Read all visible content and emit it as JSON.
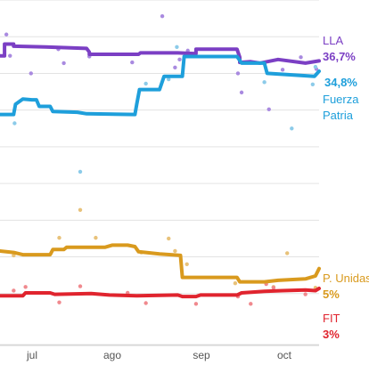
{
  "chart_data": {
    "type": "line",
    "title": "",
    "xlabel": "",
    "ylabel": "",
    "x_ticks": [
      "jul",
      "ago",
      "sep",
      "oct"
    ],
    "y_range": [
      0,
      45
    ],
    "grid": "horizontal",
    "series": [
      {
        "name": "LLA",
        "label_lines": [
          "LLA"
        ],
        "value_label": "36,7%",
        "color": "#7b3fc4",
        "dot_color": "#a98ae0",
        "points": [
          [
            0,
            37.4
          ],
          [
            0.5,
            37.4
          ],
          [
            0.5,
            39.0
          ],
          [
            1.5,
            39.0
          ],
          [
            1.5,
            38.7
          ],
          [
            5,
            38.6
          ],
          [
            9.5,
            38.4
          ],
          [
            9.8,
            37.9
          ],
          [
            9.8,
            37.6
          ],
          [
            15.2,
            37.6
          ],
          [
            15.4,
            37.8
          ],
          [
            19.5,
            37.8
          ],
          [
            21.5,
            37.7
          ],
          [
            21.5,
            38.3
          ],
          [
            26,
            38.3
          ],
          [
            26.3,
            37.2
          ],
          [
            26.3,
            36.5
          ],
          [
            27.5,
            36.6
          ],
          [
            28.5,
            36.4
          ],
          [
            30.5,
            36.9
          ],
          [
            33.5,
            36.4
          ],
          [
            35,
            36.7
          ]
        ],
        "polls": [
          [
            0.7,
            40.3
          ],
          [
            1.1,
            37.4
          ],
          [
            3.4,
            35.0
          ],
          [
            6.4,
            38.3
          ],
          [
            7.0,
            36.4
          ],
          [
            9.8,
            37.3
          ],
          [
            14.5,
            36.5
          ],
          [
            17.8,
            42.8
          ],
          [
            19.2,
            35.8
          ],
          [
            19.7,
            36.9
          ],
          [
            20.6,
            38.1
          ],
          [
            26.1,
            35.0
          ],
          [
            26.5,
            32.4
          ],
          [
            29.5,
            30.1
          ],
          [
            31.0,
            35.5
          ],
          [
            33.0,
            37.2
          ],
          [
            34.7,
            35.6
          ]
        ]
      },
      {
        "name": "Fuerza Patria",
        "label_lines": [
          "Fuerza",
          "Patria"
        ],
        "value_label": "34,8%",
        "color": "#1e9fdb",
        "dot_color": "#8ccbe9",
        "points": [
          [
            0,
            29.4
          ],
          [
            0.5,
            29.4
          ],
          [
            1.5,
            29.4
          ],
          [
            1.7,
            30.8
          ],
          [
            2.5,
            31.5
          ],
          [
            3.5,
            31.4
          ],
          [
            4.0,
            31.4
          ],
          [
            4.3,
            30.5
          ],
          [
            5.5,
            30.5
          ],
          [
            5.8,
            29.8
          ],
          [
            8.5,
            29.7
          ],
          [
            9.5,
            29.5
          ],
          [
            14.8,
            29.4
          ],
          [
            15.0,
            30.8
          ],
          [
            15.3,
            32.8
          ],
          [
            17.5,
            32.8
          ],
          [
            18.0,
            34.6
          ],
          [
            20.0,
            34.6
          ],
          [
            20.2,
            37.3
          ],
          [
            26.0,
            37.3
          ],
          [
            26.5,
            36.4
          ],
          [
            29.0,
            36.4
          ],
          [
            29.3,
            35.0
          ],
          [
            32.0,
            34.8
          ],
          [
            34.5,
            34.6
          ],
          [
            35,
            35.3
          ]
        ],
        "polls": [
          [
            1.6,
            28.2
          ],
          [
            8.8,
            21.6
          ],
          [
            16.0,
            33.6
          ],
          [
            18.5,
            34.2
          ],
          [
            19.4,
            38.6
          ],
          [
            26.3,
            37.0
          ],
          [
            29.0,
            33.8
          ],
          [
            32.0,
            27.5
          ],
          [
            34.3,
            33.5
          ],
          [
            34.6,
            35.9
          ]
        ]
      },
      {
        "name": "P. Unidas",
        "label_lines": [
          "P. Unidas"
        ],
        "value_label": "5%",
        "color": "#d99a1e",
        "dot_color": "#e8c27a",
        "points": [
          [
            0,
            10.8
          ],
          [
            1.5,
            10.6
          ],
          [
            2.5,
            10.3
          ],
          [
            5.5,
            10.3
          ],
          [
            5.8,
            11.0
          ],
          [
            7.0,
            11.0
          ],
          [
            7.3,
            11.3
          ],
          [
            11.5,
            11.3
          ],
          [
            12.3,
            11.6
          ],
          [
            14.0,
            11.6
          ],
          [
            14.8,
            11.4
          ],
          [
            15.2,
            10.7
          ],
          [
            17.5,
            10.4
          ],
          [
            19.8,
            10.2
          ],
          [
            20.0,
            7.2
          ],
          [
            26.0,
            7.2
          ],
          [
            26.3,
            6.6
          ],
          [
            29.0,
            6.6
          ],
          [
            30.5,
            6.8
          ],
          [
            33.5,
            7.0
          ],
          [
            34.6,
            7.4
          ],
          [
            35,
            8.4
          ]
        ],
        "polls": [
          [
            1.5,
            10.2
          ],
          [
            6.5,
            12.6
          ],
          [
            8.8,
            16.4
          ],
          [
            10.5,
            12.6
          ],
          [
            15.5,
            10.6
          ],
          [
            18.5,
            12.5
          ],
          [
            19.2,
            10.8
          ],
          [
            20.5,
            9.0
          ],
          [
            25.8,
            6.4
          ],
          [
            30.0,
            5.9
          ],
          [
            31.5,
            10.5
          ],
          [
            34.6,
            5.8
          ]
        ]
      },
      {
        "name": "FIT",
        "label_lines": [
          "FIT"
        ],
        "value_label": "3%",
        "color": "#e0242e",
        "dot_color": "#f0898e",
        "points": [
          [
            0,
            4.7
          ],
          [
            2.5,
            4.7
          ],
          [
            2.8,
            5.1
          ],
          [
            5.5,
            5.1
          ],
          [
            6.0,
            4.9
          ],
          [
            10.0,
            5.0
          ],
          [
            12.0,
            4.8
          ],
          [
            15.0,
            4.7
          ],
          [
            19.5,
            4.8
          ],
          [
            20.0,
            4.6
          ],
          [
            21.5,
            4.6
          ],
          [
            22.0,
            4.8
          ],
          [
            26.0,
            4.8
          ],
          [
            26.5,
            5.1
          ],
          [
            29.0,
            5.3
          ],
          [
            31.0,
            5.4
          ],
          [
            33.5,
            5.5
          ],
          [
            34.6,
            5.4
          ],
          [
            35,
            5.7
          ]
        ],
        "polls": [
          [
            1.5,
            5.4
          ],
          [
            2.8,
            5.9
          ],
          [
            6.5,
            3.8
          ],
          [
            8.8,
            6.0
          ],
          [
            14.0,
            5.1
          ],
          [
            16.0,
            3.7
          ],
          [
            21.5,
            3.6
          ],
          [
            26.1,
            4.6
          ],
          [
            27.5,
            3.6
          ],
          [
            29.2,
            6.3
          ],
          [
            30.0,
            5.8
          ],
          [
            33.5,
            4.9
          ]
        ]
      }
    ]
  }
}
